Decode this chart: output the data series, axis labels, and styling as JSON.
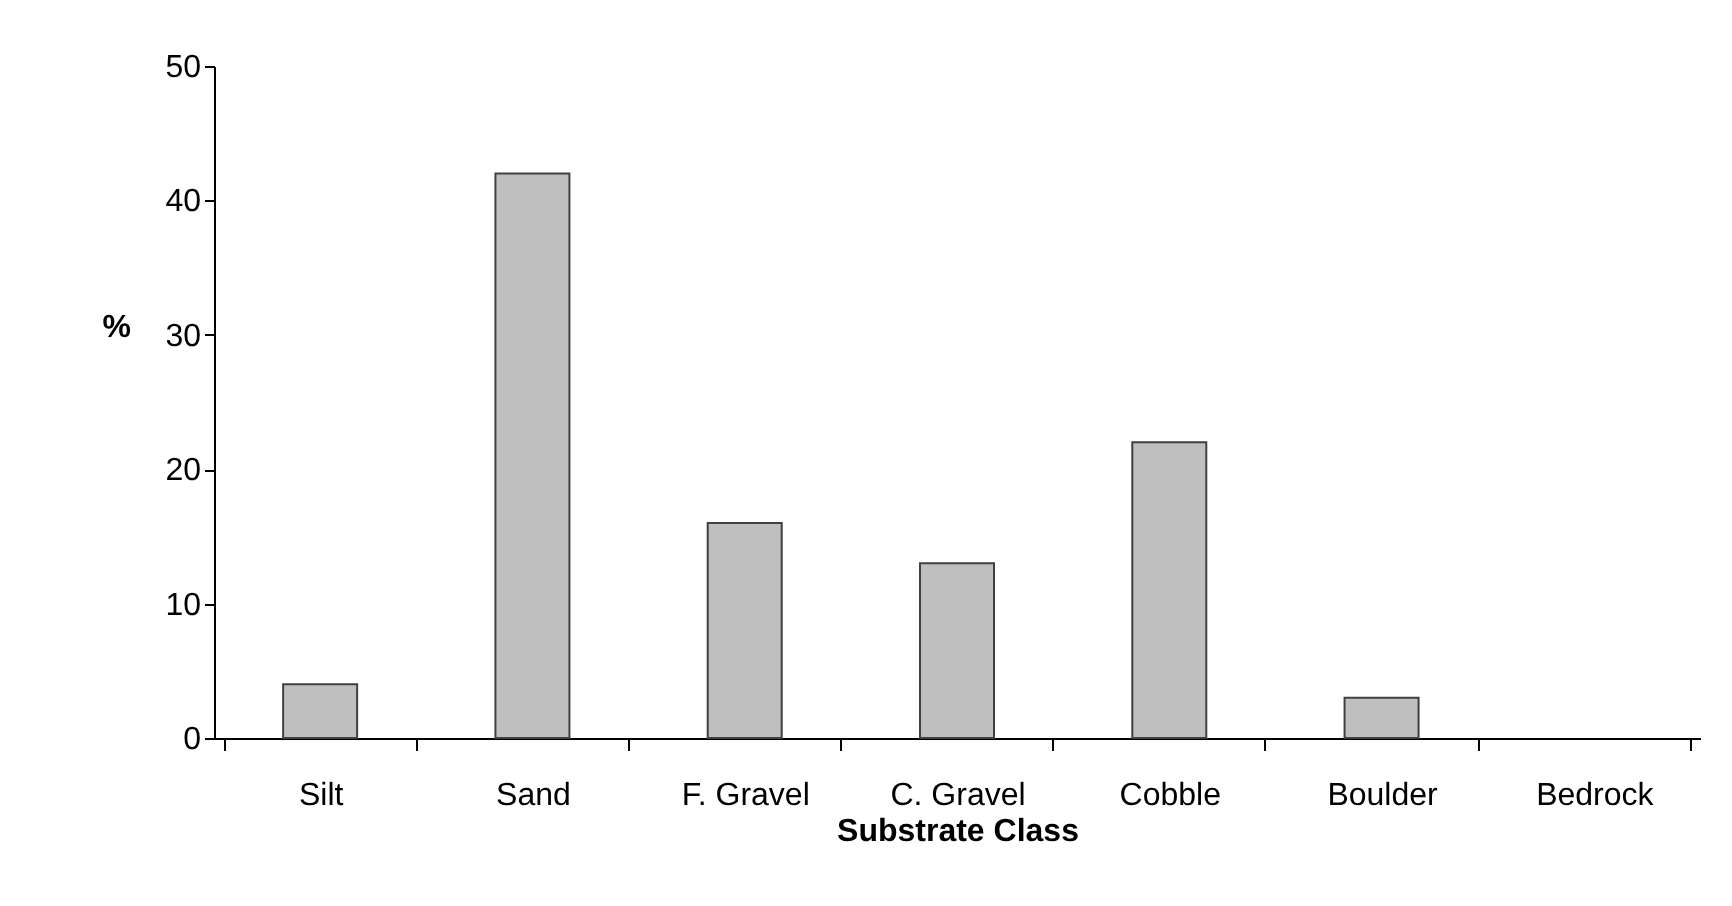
{
  "chart_data": {
    "type": "bar",
    "categories": [
      "Silt",
      "Sand",
      "F. Gravel",
      "C. Gravel",
      "Cobble",
      "Boulder",
      "Bedrock"
    ],
    "values": [
      4,
      42,
      16,
      13,
      22,
      3,
      0
    ],
    "color": "#bfbfbf",
    "xlabel": "Substrate Class",
    "ylabel": "%",
    "ylim": [
      0,
      50
    ],
    "yticks": [
      0,
      10,
      20,
      30,
      40,
      50
    ],
    "grid": false
  }
}
